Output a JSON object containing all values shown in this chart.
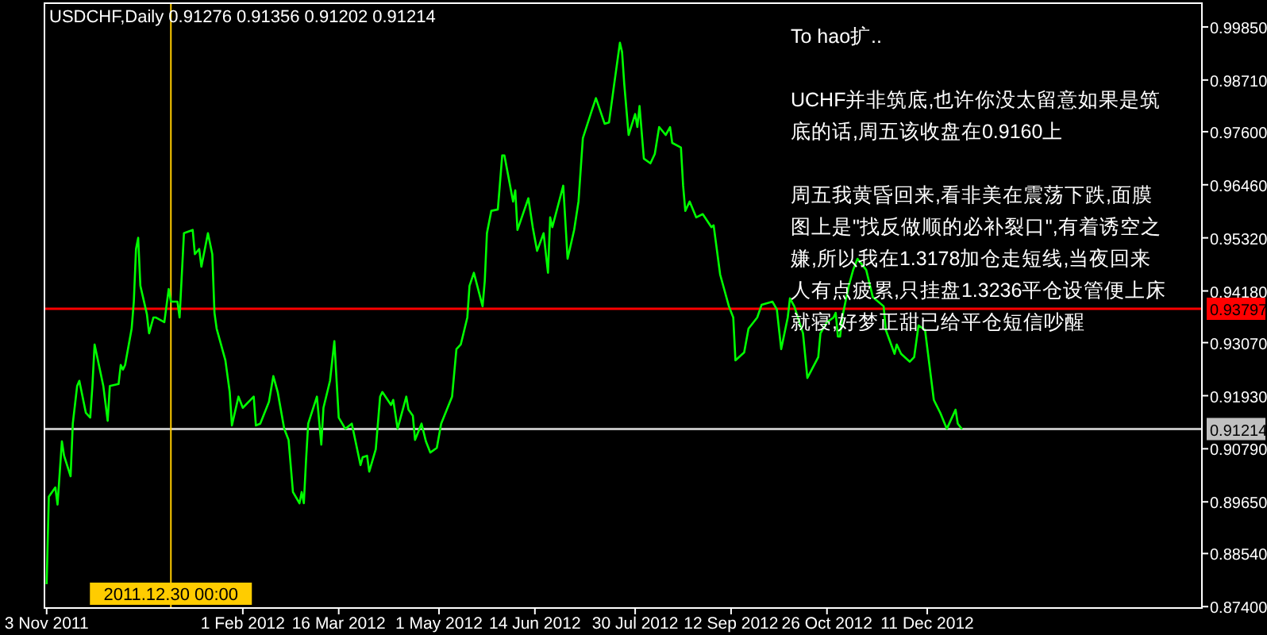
{
  "chart_data": {
    "type": "line",
    "title": "USDCHF,Daily  0.91276 0.91356 0.91202 0.91214",
    "annotations": [
      "To hao扩..",
      "UCHF并非筑底,也许你没太留意如果是筑底的话,周五该收盘在0.9160上",
      "周五我黄昏回来,看非美在震荡下跌,面膜图上是\"找反做顺的必补裂口\",有着诱空之嫌,所以我在1.3178加仓走短线,当夜回来人有点疲累,只挂盘1.3236平仓设管便上床就寝,好梦正甜已给平仓短信吵醒"
    ],
    "x": [
      "2011-11-03",
      "2011-11-04",
      "2011-11-07",
      "2011-11-08",
      "2011-11-10",
      "2011-11-11",
      "2011-11-14",
      "2011-11-15",
      "2011-11-17",
      "2011-11-18",
      "2011-11-21",
      "2011-11-23",
      "2011-11-24",
      "2011-11-25",
      "2011-11-29",
      "2011-12-01",
      "2011-12-02",
      "2011-12-06",
      "2011-12-07",
      "2011-12-08",
      "2011-12-09",
      "2011-12-12",
      "2011-12-13",
      "2011-12-14",
      "2011-12-15",
      "2011-12-16",
      "2011-12-19",
      "2011-12-20",
      "2011-12-22",
      "2011-12-23",
      "2011-12-27",
      "2011-12-29",
      "2011-12-30",
      "2012-01-02",
      "2012-01-03",
      "2012-01-05",
      "2012-01-09",
      "2012-01-10",
      "2012-01-12",
      "2012-01-13",
      "2012-01-16",
      "2012-01-18",
      "2012-01-19",
      "2012-01-20",
      "2012-01-24",
      "2012-01-26",
      "2012-01-27",
      "2012-01-30",
      "2012-02-01",
      "2012-02-06",
      "2012-02-07",
      "2012-02-09",
      "2012-02-13",
      "2012-02-15",
      "2012-02-17",
      "2012-02-20",
      "2012-02-22",
      "2012-02-24",
      "2012-02-27",
      "2012-02-28",
      "2012-02-29",
      "2012-03-01",
      "2012-03-02",
      "2012-03-06",
      "2012-03-08",
      "2012-03-09",
      "2012-03-12",
      "2012-03-14",
      "2012-03-16",
      "2012-03-19",
      "2012-03-22",
      "2012-03-26",
      "2012-03-27",
      "2012-03-29",
      "2012-03-30",
      "2012-04-02",
      "2012-04-04",
      "2012-04-05",
      "2012-04-09",
      "2012-04-10",
      "2012-04-12",
      "2012-04-16",
      "2012-04-17",
      "2012-04-19",
      "2012-04-20",
      "2012-04-23",
      "2012-04-25",
      "2012-04-27",
      "2012-04-30",
      "2012-05-02",
      "2012-05-07",
      "2012-05-09",
      "2012-05-11",
      "2012-05-14",
      "2012-05-15",
      "2012-05-17",
      "2012-05-21",
      "2012-05-22",
      "2012-05-23",
      "2012-05-25",
      "2012-05-28",
      "2012-05-30",
      "2012-05-31",
      "2012-06-04",
      "2012-06-05",
      "2012-06-06",
      "2012-06-11",
      "2012-06-13",
      "2012-06-15",
      "2012-06-18",
      "2012-06-20",
      "2012-06-21",
      "2012-06-22",
      "2012-06-27",
      "2012-06-29",
      "2012-07-02",
      "2012-07-04",
      "2012-07-06",
      "2012-07-10",
      "2012-07-12",
      "2012-07-16",
      "2012-07-18",
      "2012-07-20",
      "2012-07-23",
      "2012-07-24",
      "2012-07-25",
      "2012-07-27",
      "2012-07-30",
      "2012-07-31",
      "2012-08-01",
      "2012-08-03",
      "2012-08-06",
      "2012-08-08",
      "2012-08-10",
      "2012-08-13",
      "2012-08-15",
      "2012-08-16",
      "2012-08-20",
      "2012-08-21",
      "2012-08-22",
      "2012-08-24",
      "2012-08-27",
      "2012-08-30",
      "2012-09-03",
      "2012-09-04",
      "2012-09-07",
      "2012-09-11",
      "2012-09-13",
      "2012-09-14",
      "2012-09-18",
      "2012-09-20",
      "2012-09-24",
      "2012-09-26",
      "2012-10-01",
      "2012-10-03",
      "2012-10-05",
      "2012-10-08",
      "2012-10-09",
      "2012-10-11",
      "2012-10-15",
      "2012-10-17",
      "2012-10-22",
      "2012-10-23",
      "2012-10-26",
      "2012-10-29",
      "2012-10-30",
      "2012-10-31",
      "2012-11-01",
      "2012-11-02",
      "2012-11-05",
      "2012-11-07",
      "2012-11-09",
      "2012-11-13",
      "2012-11-16",
      "2012-11-21",
      "2012-11-22",
      "2012-11-26",
      "2012-11-27",
      "2012-11-29",
      "2012-12-03",
      "2012-12-05",
      "2012-12-07",
      "2012-12-10",
      "2012-12-12",
      "2012-12-14",
      "2012-12-17",
      "2012-12-19",
      "2012-12-20",
      "2012-12-24",
      "2012-12-25",
      "2012-12-27"
    ],
    "series": [
      {
        "color": "#00ff00",
        "values": [
          0.8788,
          0.8976,
          0.8996,
          0.8959,
          0.9095,
          0.9064,
          0.902,
          0.9133,
          0.9214,
          0.9225,
          0.9156,
          0.9146,
          0.9214,
          0.9303,
          0.9214,
          0.9139,
          0.9214,
          0.9218,
          0.9259,
          0.9249,
          0.9259,
          0.9337,
          0.9395,
          0.9508,
          0.9532,
          0.9429,
          0.9368,
          0.9327,
          0.9361,
          0.9361,
          0.9351,
          0.9422,
          0.9395,
          0.9395,
          0.9361,
          0.9542,
          0.9549,
          0.9497,
          0.9508,
          0.947,
          0.9542,
          0.9497,
          0.9371,
          0.9337,
          0.9269,
          0.9201,
          0.9129,
          0.9191,
          0.9167,
          0.9191,
          0.9129,
          0.9133,
          0.918,
          0.9235,
          0.9201,
          0.9122,
          0.9098,
          0.8986,
          0.8962,
          0.8986,
          0.8962,
          0.9054,
          0.9133,
          0.9191,
          0.9088,
          0.9167,
          0.9225,
          0.931,
          0.9146,
          0.9122,
          0.9133,
          0.9044,
          0.9061,
          0.9064,
          0.903,
          0.9078,
          0.9191,
          0.9201,
          0.9173,
          0.9184,
          0.9122,
          0.9191,
          0.9163,
          0.915,
          0.9098,
          0.9133,
          0.9095,
          0.9071,
          0.9081,
          0.9133,
          0.9191,
          0.9293,
          0.9303,
          0.9361,
          0.9429,
          0.9457,
          0.9385,
          0.9439,
          0.9542,
          0.959,
          0.9593,
          0.9709,
          0.9709,
          0.961,
          0.9634,
          0.9549,
          0.9617,
          0.9555,
          0.9504,
          0.9542,
          0.9457,
          0.9576,
          0.9555,
          0.9644,
          0.9487,
          0.9549,
          0.961,
          0.9746,
          0.9804,
          0.9832,
          0.9777,
          0.978,
          0.9849,
          0.9951,
          0.9931,
          0.9862,
          0.9753,
          0.9798,
          0.977,
          0.9815,
          0.9702,
          0.9692,
          0.9712,
          0.977,
          0.9753,
          0.977,
          0.9736,
          0.9726,
          0.9644,
          0.959,
          0.961,
          0.9576,
          0.9583,
          0.9555,
          0.9559,
          0.9453,
          0.9385,
          0.9361,
          0.9269,
          0.9286,
          0.9337,
          0.9361,
          0.9388,
          0.9395,
          0.9378,
          0.9293,
          0.9361,
          0.9402,
          0.9385,
          0.9327,
          0.9231,
          0.9276,
          0.9327,
          0.9351,
          0.9361,
          0.9371,
          0.932,
          0.932,
          0.9361,
          0.9429,
          0.9463,
          0.9487,
          0.9463,
          0.9405,
          0.9385,
          0.9334,
          0.9283,
          0.9303,
          0.9283,
          0.9266,
          0.9276,
          0.9344,
          0.9334,
          0.9259,
          0.9184,
          0.9156,
          0.9133,
          0.9122,
          0.9163,
          0.9133,
          0.9121
        ]
      }
    ],
    "xlim": [
      "2011-11-02",
      "2013-04-16"
    ],
    "ylim": [
      0.8737,
      1.0036
    ],
    "xticks": [
      {
        "value": "2011-11-03",
        "label": "3 Nov 2011"
      },
      {
        "value": "2012-02-01",
        "label": "1 Feb 2012"
      },
      {
        "value": "2012-03-16",
        "label": "16 Mar 2012"
      },
      {
        "value": "2012-05-01",
        "label": "1 May 2012"
      },
      {
        "value": "2012-06-14",
        "label": "14 Jun 2012"
      },
      {
        "value": "2012-07-30",
        "label": "30 Jul 2012"
      },
      {
        "value": "2012-09-12",
        "label": "12 Sep 2012"
      },
      {
        "value": "2012-10-26",
        "label": "26 Oct 2012"
      },
      {
        "value": "2012-12-11",
        "label": "11 Dec 2012"
      }
    ],
    "yticks": [
      {
        "value": 0.9985,
        "label": "0.99850"
      },
      {
        "value": 0.9871,
        "label": "0.98710"
      },
      {
        "value": 0.976,
        "label": "0.97600"
      },
      {
        "value": 0.9646,
        "label": "0.96460"
      },
      {
        "value": 0.9532,
        "label": "0.95320"
      },
      {
        "value": 0.9418,
        "label": "0.94180"
      },
      {
        "value": 0.9307,
        "label": "0.93070"
      },
      {
        "value": 0.9193,
        "label": "0.91930"
      },
      {
        "value": 0.9079,
        "label": "0.90790"
      },
      {
        "value": 0.8965,
        "label": "0.89650"
      },
      {
        "value": 0.8854,
        "label": "0.88540"
      },
      {
        "value": 0.874,
        "label": "0.87400"
      }
    ],
    "ref_lines": [
      {
        "axis": "y",
        "value": 0.93797,
        "label": "0.93797",
        "color": "#ff0000"
      },
      {
        "axis": "y",
        "value": 0.91214,
        "label": "0.91214",
        "color": "#c0c0c0"
      },
      {
        "axis": "x",
        "value": "2011-12-30",
        "label": "2011.12.30 00:00",
        "color": "#ffcc00"
      }
    ]
  }
}
